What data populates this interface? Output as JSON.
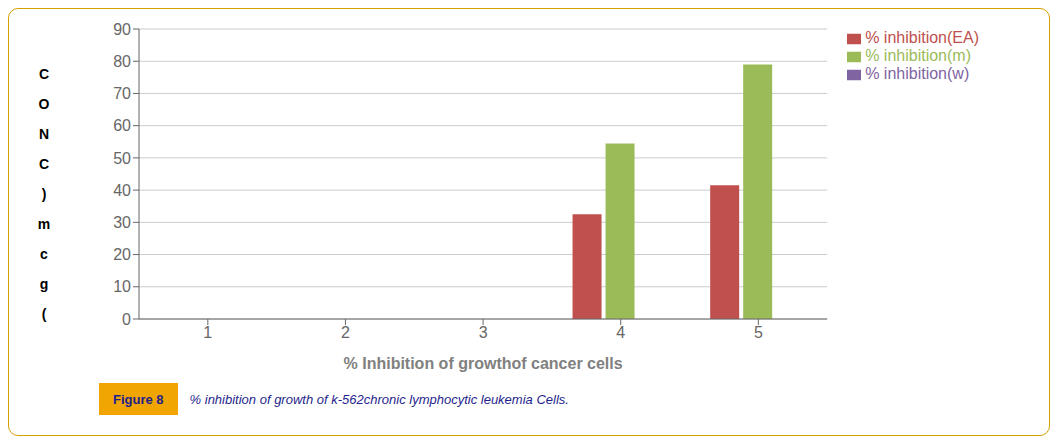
{
  "chart_data": {
    "type": "bar",
    "categories": [
      1,
      2,
      3,
      4,
      5
    ],
    "series": [
      {
        "name": "% inhibition(EA)",
        "color": "#c0504d",
        "values": [
          0,
          0,
          0,
          32.5,
          41.5
        ]
      },
      {
        "name": "% inhibition(m)",
        "color": "#9bbb59",
        "values": [
          0,
          0,
          0,
          54.5,
          79.0
        ]
      },
      {
        "name": "% inhibition(w)",
        "color": "#8064a2",
        "values": [
          0,
          0,
          0,
          0,
          0
        ]
      }
    ],
    "x_label": "% Inhibition of growthof cancer cells",
    "y_label": "CONC)mcg(",
    "annotations": [
      "Figure 8",
      "% inhibition of growth of k-562chronic lymphocytic leukemia Cells."
    ],
    "ylim": [
      0,
      90
    ],
    "yticks": [
      0,
      10,
      20,
      30,
      40,
      50,
      60,
      70,
      80,
      90
    ],
    "grid": true,
    "legend": "right"
  }
}
